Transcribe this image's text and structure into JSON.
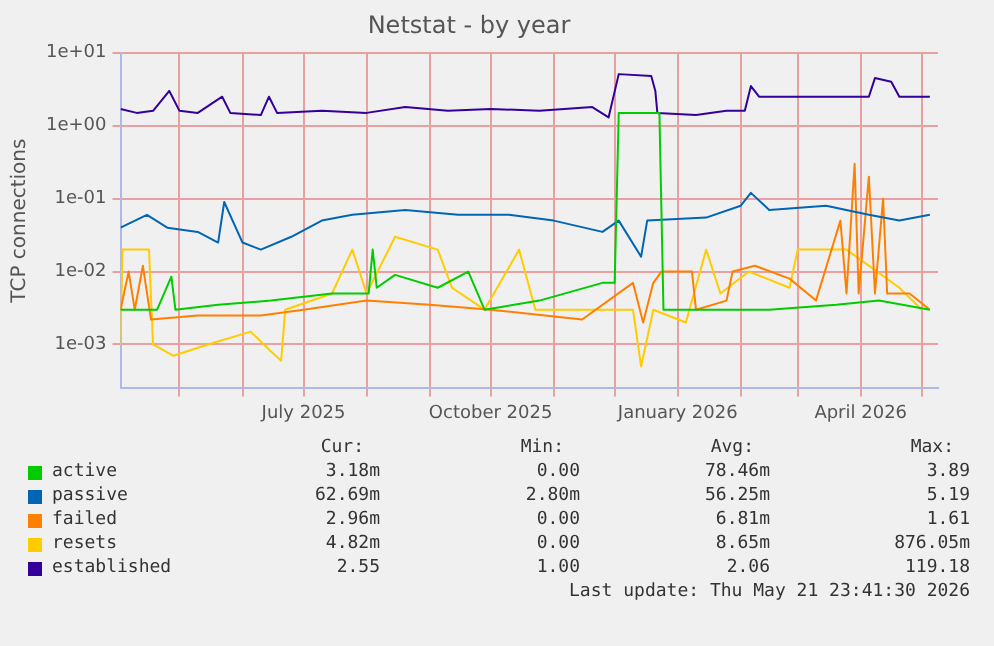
{
  "chart_data": {
    "type": "line",
    "title": "Netstat - by year",
    "ylabel": "TCP connections",
    "log": true,
    "grid": true,
    "legend": "bottom",
    "marker": "none",
    "line_style": "solid",
    "xlim": [
      "2025-04-02",
      "2026-05-09"
    ],
    "xticks": [
      {
        "value": "2025-05-01",
        "label": null
      },
      {
        "value": "2025-06-01",
        "label": null
      },
      {
        "value": "2025-07-01",
        "label": "July 2025"
      },
      {
        "value": "2025-08-01",
        "label": null
      },
      {
        "value": "2025-09-01",
        "label": null
      },
      {
        "value": "2025-10-01",
        "label": "October 2025"
      },
      {
        "value": "2025-11-01",
        "label": null
      },
      {
        "value": "2025-12-01",
        "label": null
      },
      {
        "value": "2026-01-01",
        "label": "January 2026"
      },
      {
        "value": "2026-02-01",
        "label": null
      },
      {
        "value": "2026-03-01",
        "label": null
      },
      {
        "value": "2026-04-01",
        "label": "April 2026"
      },
      {
        "value": "2026-05-01",
        "label": null
      }
    ],
    "ylim": [
      0.00025,
      10
    ],
    "yticks": [
      {
        "value": 0.001,
        "label": "1e-03"
      },
      {
        "value": 0.01,
        "label": "1e-02"
      },
      {
        "value": 0.1,
        "label": "1e-01"
      },
      {
        "value": 1,
        "label": "1e+00"
      },
      {
        "value": 10,
        "label": "1e+01"
      }
    ],
    "series": [
      {
        "name": "active",
        "color": "#00cc00",
        "x": [
          "2025-04-02",
          "2025-04-20",
          "2025-04-27",
          "2025-04-29",
          "2025-05-20",
          "2025-06-15",
          "2025-07-15",
          "2025-08-02",
          "2025-08-04",
          "2025-08-06",
          "2025-08-15",
          "2025-09-05",
          "2025-09-20",
          "2025-09-28",
          "2025-10-25",
          "2025-11-25",
          "2025-12-01",
          "2025-12-03",
          "2025-12-23",
          "2025-12-25",
          "2026-02-15",
          "2026-03-20",
          "2026-04-10",
          "2026-05-05"
        ],
        "values": [
          0.003,
          0.003,
          0.0085,
          0.003,
          0.0035,
          0.004,
          0.005,
          0.005,
          0.02,
          0.006,
          0.009,
          0.006,
          0.01,
          0.003,
          0.004,
          0.007,
          0.007,
          1.5,
          1.5,
          0.003,
          0.003,
          0.0035,
          0.004,
          0.003
        ]
      },
      {
        "name": "passive",
        "color": "#0066b3",
        "x": [
          "2025-04-02",
          "2025-04-15",
          "2025-04-25",
          "2025-05-10",
          "2025-05-20",
          "2025-05-23",
          "2025-06-01",
          "2025-06-10",
          "2025-06-25",
          "2025-07-10",
          "2025-07-25",
          "2025-08-20",
          "2025-09-15",
          "2025-10-10",
          "2025-11-01",
          "2025-11-25",
          "2025-12-03",
          "2025-12-14",
          "2025-12-17",
          "2026-01-15",
          "2026-02-01",
          "2026-02-06",
          "2026-02-15",
          "2026-03-15",
          "2026-04-05",
          "2026-04-20",
          "2026-05-05"
        ],
        "values": [
          0.04,
          0.06,
          0.04,
          0.035,
          0.025,
          0.09,
          0.025,
          0.02,
          0.03,
          0.05,
          0.06,
          0.07,
          0.06,
          0.06,
          0.05,
          0.035,
          0.05,
          0.016,
          0.05,
          0.055,
          0.08,
          0.12,
          0.07,
          0.08,
          0.06,
          0.05,
          0.06
        ]
      },
      {
        "name": "failed",
        "color": "#ff8000",
        "x": [
          "2025-04-02",
          "2025-04-06",
          "2025-04-09",
          "2025-04-13",
          "2025-04-17",
          "2025-05-10",
          "2025-06-10",
          "2025-07-01",
          "2025-08-01",
          "2025-09-01",
          "2025-10-01",
          "2025-11-15",
          "2025-12-10",
          "2025-12-15",
          "2025-12-20",
          "2025-12-24",
          "2026-01-08",
          "2026-01-10",
          "2026-01-25",
          "2026-01-28",
          "2026-02-08",
          "2026-02-25",
          "2026-03-10",
          "2026-03-22",
          "2026-03-25",
          "2026-03-29",
          "2026-03-31",
          "2026-04-05",
          "2026-04-08",
          "2026-04-12",
          "2026-04-14",
          "2026-04-25",
          "2026-05-05"
        ],
        "values": [
          0.003,
          0.01,
          0.003,
          0.012,
          0.0022,
          0.0025,
          0.0025,
          0.003,
          0.004,
          0.0035,
          0.003,
          0.0022,
          0.007,
          0.002,
          0.007,
          0.01,
          0.01,
          0.003,
          0.004,
          0.01,
          0.012,
          0.008,
          0.004,
          0.05,
          0.005,
          0.3,
          0.005,
          0.2,
          0.005,
          0.1,
          0.005,
          0.005,
          0.003
        ]
      },
      {
        "name": "resets",
        "color": "#ffcc00",
        "x": [
          "2025-04-02",
          "2025-04-03",
          "2025-04-16",
          "2025-04-18",
          "2025-04-28",
          "2025-05-15",
          "2025-06-05",
          "2025-06-15",
          "2025-06-20",
          "2025-06-22",
          "2025-07-15",
          "2025-07-25",
          "2025-08-01",
          "2025-08-15",
          "2025-09-05",
          "2025-09-12",
          "2025-09-28",
          "2025-10-15",
          "2025-10-23",
          "2025-12-10",
          "2025-12-14",
          "2025-12-20",
          "2026-01-05",
          "2026-01-15",
          "2026-01-22",
          "2026-02-05",
          "2026-02-25",
          "2026-03-01",
          "2026-03-25",
          "2026-04-20",
          "2026-05-01"
        ],
        "values": [
          0.001,
          0.02,
          0.02,
          0.001,
          0.0007,
          0.001,
          0.0015,
          0.0008,
          0.0006,
          0.003,
          0.005,
          0.02,
          0.005,
          0.03,
          0.02,
          0.006,
          0.003,
          0.02,
          0.003,
          0.003,
          0.0005,
          0.003,
          0.002,
          0.02,
          0.005,
          0.01,
          0.006,
          0.02,
          0.02,
          0.006,
          0.003
        ]
      },
      {
        "name": "established",
        "color": "#330099",
        "x": [
          "2025-04-02",
          "2025-04-10",
          "2025-04-18",
          "2025-04-26",
          "2025-05-01",
          "2025-05-10",
          "2025-05-22",
          "2025-05-26",
          "2025-06-10",
          "2025-06-14",
          "2025-06-18",
          "2025-07-10",
          "2025-08-01",
          "2025-08-20",
          "2025-09-10",
          "2025-10-01",
          "2025-10-25",
          "2025-11-20",
          "2025-11-28",
          "2025-12-03",
          "2025-12-19",
          "2025-12-21",
          "2025-12-22",
          "2026-01-10",
          "2026-01-25",
          "2026-02-03",
          "2026-02-06",
          "2026-02-10",
          "2026-03-10",
          "2026-04-05",
          "2026-04-08",
          "2026-04-16",
          "2026-04-20",
          "2026-05-05"
        ],
        "values": [
          1.7,
          1.5,
          1.6,
          3.0,
          1.6,
          1.5,
          2.5,
          1.5,
          1.4,
          2.5,
          1.5,
          1.6,
          1.5,
          1.8,
          1.6,
          1.7,
          1.6,
          1.8,
          1.3,
          5.1,
          4.8,
          3.0,
          1.5,
          1.4,
          1.6,
          1.6,
          3.5,
          2.5,
          2.5,
          2.5,
          4.5,
          4.0,
          2.5,
          2.5
        ]
      }
    ],
    "annotations": [
      "Cur:",
      "Min:",
      "Avg:",
      "Max:",
      "3.18m",
      "0.00",
      "78.46m",
      "3.89",
      "62.69m",
      "2.80m",
      "56.25m",
      "5.19",
      "2.96m",
      "0.00",
      "6.81m",
      "1.61",
      "4.82m",
      "0.00",
      "8.65m",
      "876.05m",
      "2.55",
      "1.00",
      "2.06",
      "119.18",
      "Last update: Thu May 21 23:41:30 2026"
    ]
  }
}
